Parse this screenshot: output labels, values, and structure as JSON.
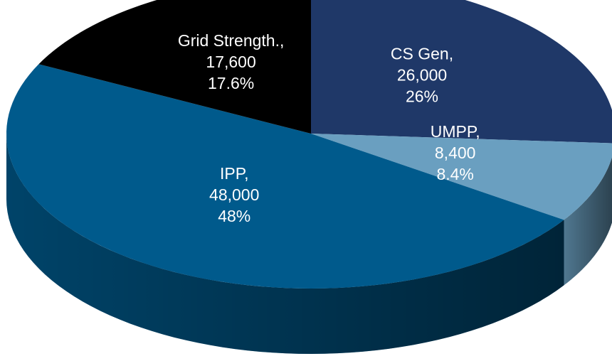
{
  "chart_data": {
    "type": "pie",
    "categories": [
      "CS Gen,",
      "UMPP,",
      "IPP,",
      "Grid Strength.,"
    ],
    "values": [
      26000,
      8400,
      48000,
      17600
    ],
    "value_labels": [
      "26,000",
      "8,400",
      "48,000",
      "17,600"
    ],
    "percents": [
      26,
      8.4,
      48,
      17.6
    ],
    "percent_labels": [
      "26%",
      "8.4%",
      "48%",
      "17.6%"
    ],
    "colors": [
      "#1f3868",
      "#6a9fc0",
      "#005a8c",
      "#000000"
    ],
    "three_d": true
  }
}
